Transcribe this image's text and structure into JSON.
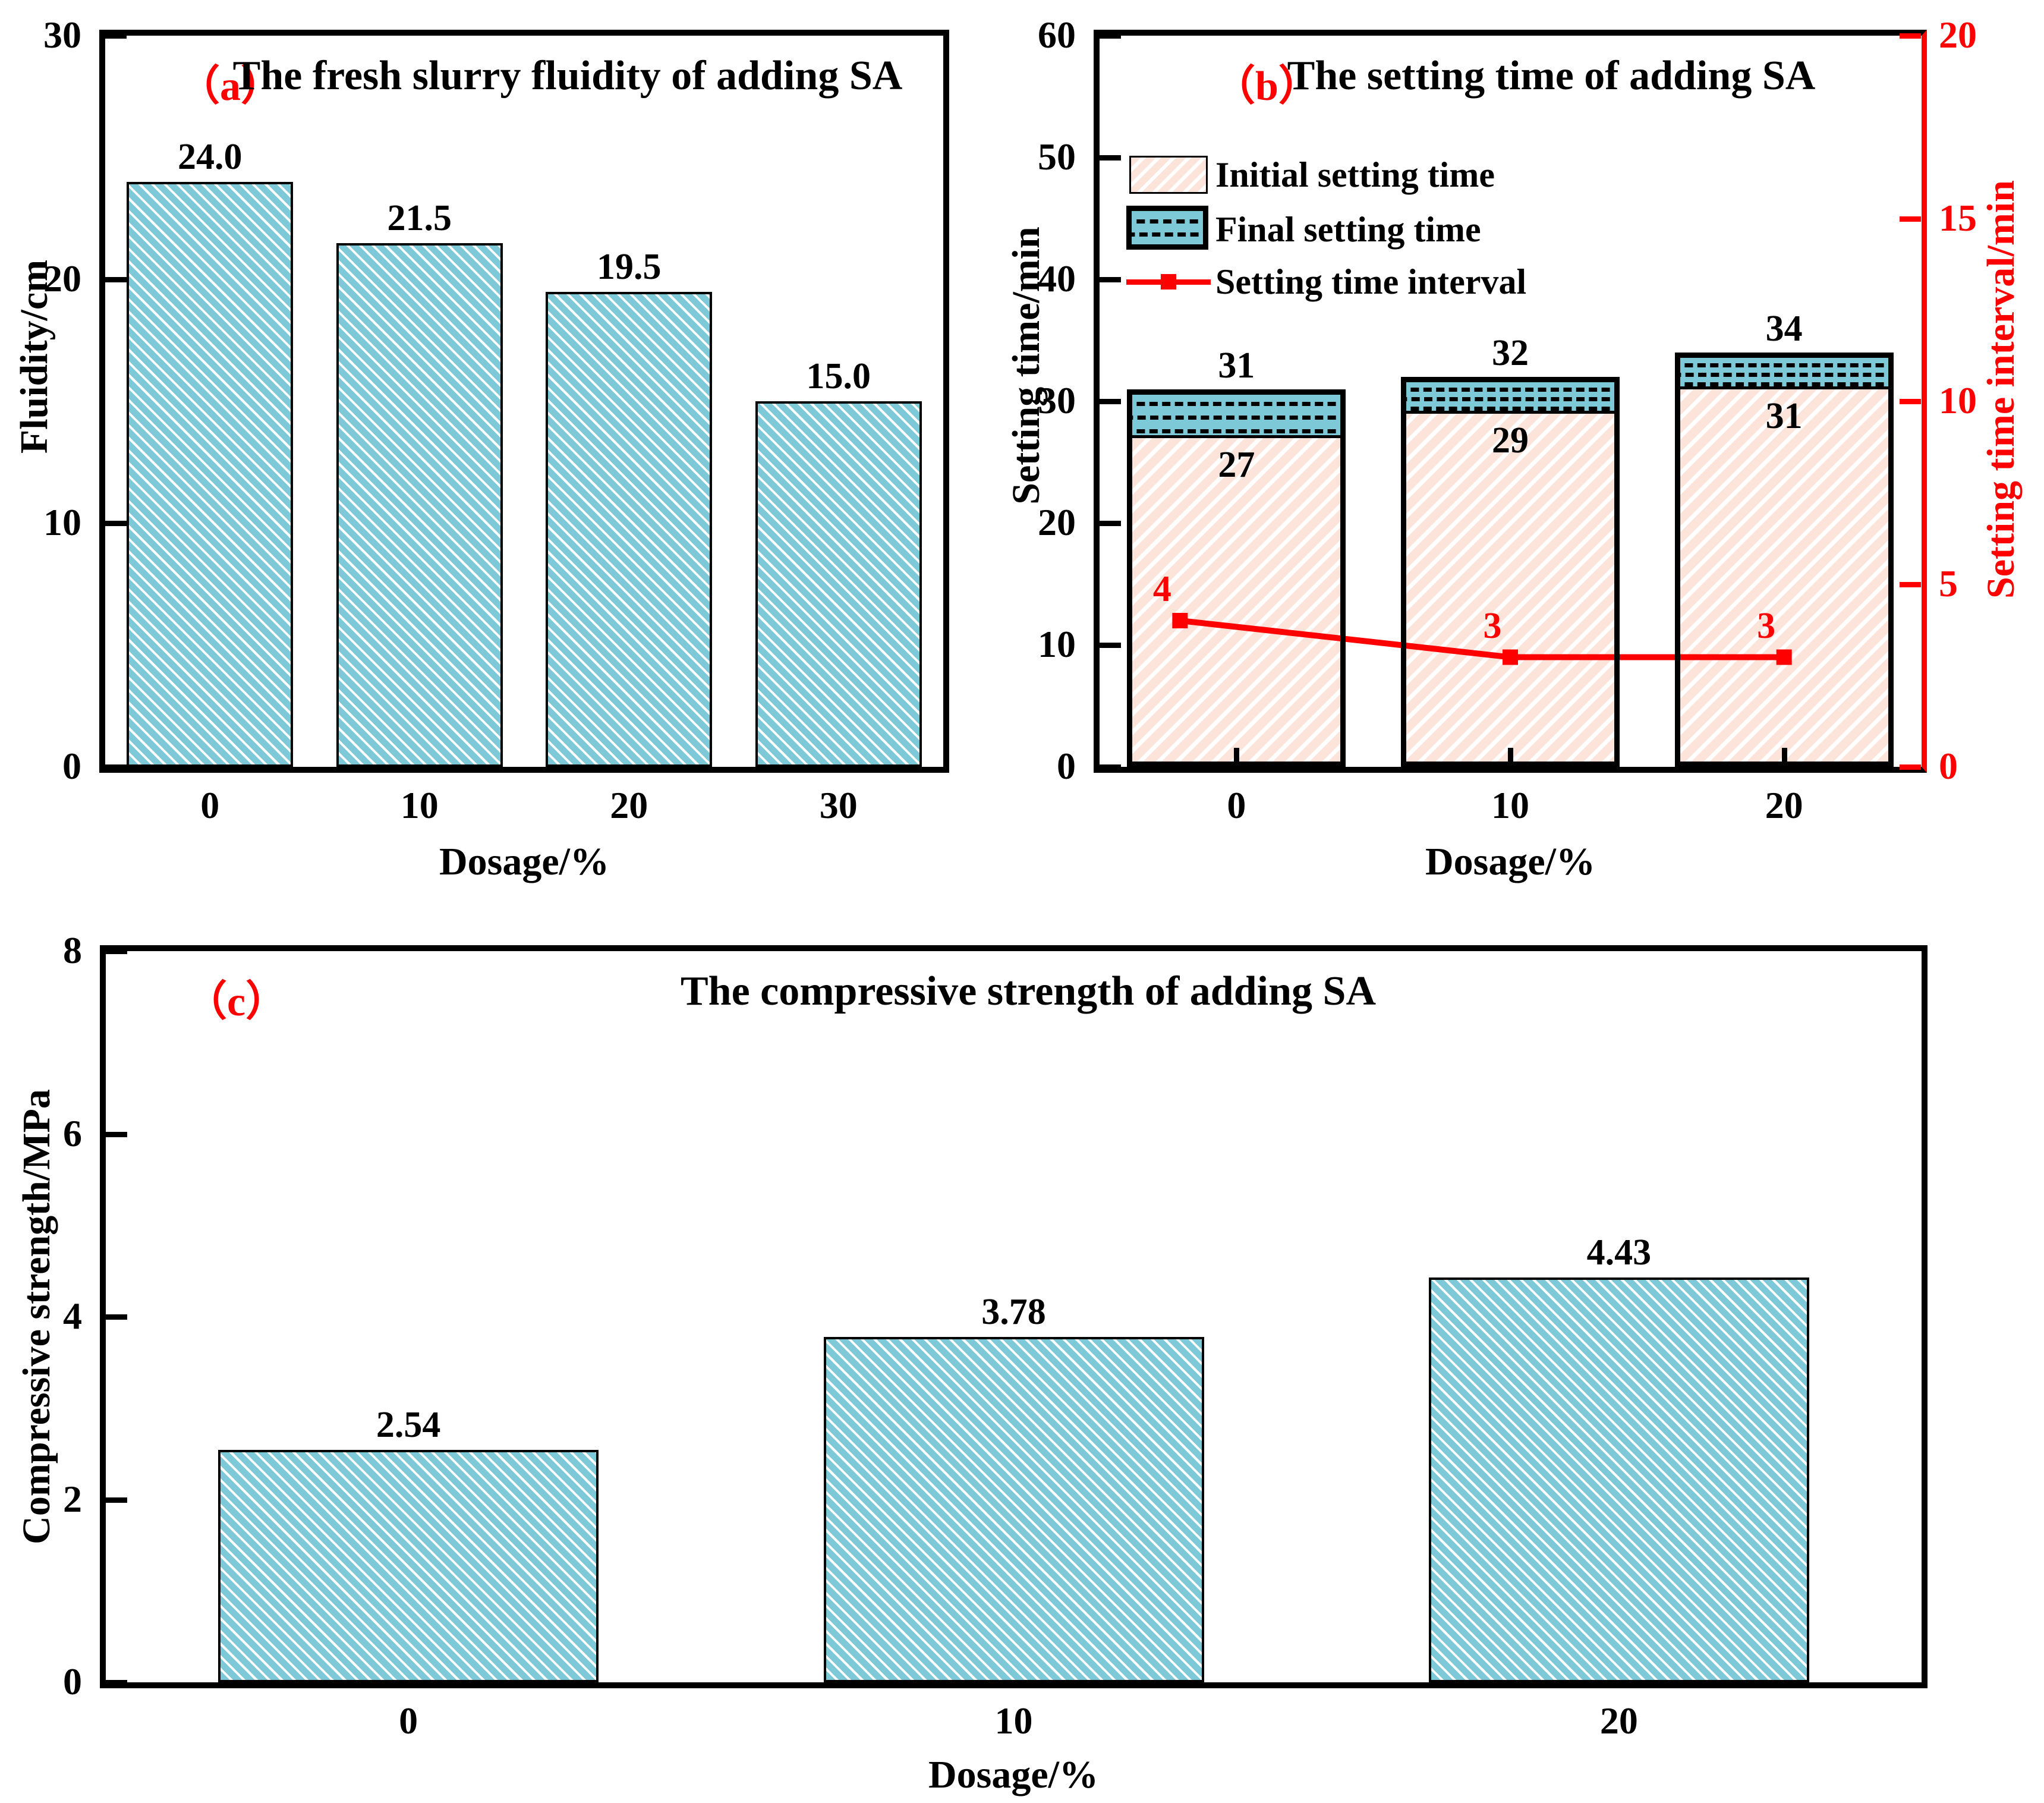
{
  "figure_bg": "#ffffff",
  "colors": {
    "bar_blue": "#7ec9d8",
    "bar_pink": "#fce4da",
    "interval_red": "#ff0000",
    "axis_black": "#000000"
  },
  "chart_data": [
    {
      "id": "a",
      "type": "bar",
      "tag": "（a）",
      "title": "The fresh slurry fluidity of adding SA",
      "xlabel": "Dosage/%",
      "ylabel": "Fluidity/cm",
      "categories": [
        "0",
        "10",
        "20",
        "30"
      ],
      "values": [
        24.0,
        21.5,
        19.5,
        15.0
      ],
      "value_labels": [
        "24.0",
        "21.5",
        "19.5",
        "15.0"
      ],
      "ylim": [
        0,
        30
      ],
      "yticks": [
        "0",
        "10",
        "20",
        "30"
      ],
      "grid": false,
      "bar_hatch": "\\\\ white on blue"
    },
    {
      "id": "b",
      "type": "stacked_bar_line",
      "tag": "（b）",
      "title": "The setting time of adding SA",
      "xlabel": "Dosage/%",
      "ylabel_left": "Setting time/min",
      "ylabel_right": "Setting time interval/min",
      "categories": [
        "0",
        "10",
        "20"
      ],
      "series": [
        {
          "name": "Initial setting time",
          "values": [
            27,
            29,
            31
          ],
          "value_labels": [
            "27",
            "29",
            "31"
          ],
          "style": "pink hatched bar segment"
        },
        {
          "name": "Final setting time",
          "values": [
            31,
            32,
            34
          ],
          "value_labels": [
            "31",
            "32",
            "34"
          ],
          "style": "blue dashed bar cap (totals)"
        },
        {
          "name": "Setting time interval",
          "values": [
            4,
            3,
            3
          ],
          "value_labels": [
            "4",
            "3",
            "3"
          ],
          "style": "red line with square markers, right axis"
        }
      ],
      "ylim_left": [
        0,
        60
      ],
      "yticks_left": [
        "0",
        "10",
        "20",
        "30",
        "40",
        "50",
        "60"
      ],
      "ylim_right": [
        0,
        20
      ],
      "yticks_right": [
        "0",
        "5",
        "10",
        "15",
        "20"
      ],
      "legend_position": "upper left inside plot",
      "grid": false
    },
    {
      "id": "c",
      "type": "bar",
      "tag": "（c）",
      "title": "The compressive strength of adding SA",
      "xlabel": "Dosage/%",
      "ylabel": "Compressive strength/MPa",
      "categories": [
        "0",
        "10",
        "20"
      ],
      "values": [
        2.54,
        3.78,
        4.43
      ],
      "value_labels": [
        "2.54",
        "3.78",
        "4.43"
      ],
      "ylim": [
        0,
        8
      ],
      "yticks": [
        "0",
        "2",
        "4",
        "6",
        "8"
      ],
      "grid": false,
      "bar_hatch": "\\\\ white on blue"
    }
  ]
}
